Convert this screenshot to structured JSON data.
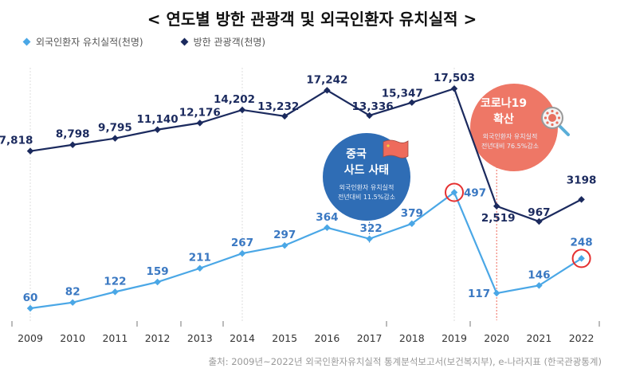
{
  "chart_data": {
    "type": "line",
    "title": "< 연도별 방한 관광객 및 외국인환자 유치실적 >",
    "x": [
      "2009",
      "2010",
      "2011",
      "2012",
      "2013",
      "2014",
      "2015",
      "2016",
      "2017",
      "2018",
      "2019",
      "2020",
      "2021",
      "2022"
    ],
    "series": [
      {
        "name": "외국인환자 유치실적(천명)",
        "color": "#4aa7e6",
        "values": [
          60,
          82,
          122,
          159,
          211,
          267,
          297,
          364,
          322,
          379,
          497,
          117,
          146,
          248
        ],
        "labels": [
          "60",
          "82",
          "122",
          "159",
          "211",
          "267",
          "297",
          "364",
          "322",
          "379",
          "497",
          "117",
          "146",
          "248"
        ],
        "label_color": "#3a78c2"
      },
      {
        "name": "방한 관광객(천명)",
        "color": "#1b2a5e",
        "values": [
          7818,
          8798,
          9795,
          11140,
          12176,
          14202,
          13232,
          17242,
          13336,
          15347,
          17503,
          2519,
          967,
          3198
        ],
        "labels": [
          "7,818",
          "8,798",
          "9,795",
          "11,140",
          "12,176",
          "14,202",
          "13,232",
          "17,242",
          "13,336",
          "15,347",
          "17,503",
          "2,519",
          "967",
          "3198"
        ],
        "label_color": "#1b2a5e"
      }
    ],
    "legend": "top-left",
    "grid": "vertical-dotted",
    "annotations": [
      {
        "year": "2017",
        "title_line1": "중국",
        "title_line2": "사드 사태",
        "sub_line1": "외국인환자 유치실적",
        "sub_line2": "전년대비 11.5%감소",
        "color": "#2f6db5"
      },
      {
        "year": "2020",
        "title_line1": "코로나19",
        "title_line2": "확산",
        "sub_line1": "외국인환자 유치실적",
        "sub_line2": "전년대비 76.5%감소",
        "color": "#ee7766"
      }
    ],
    "highlight_years": [
      "2019",
      "2022"
    ],
    "highlight_color": "#e53030"
  },
  "source": "출처: 2009년~2022년 외국인환자유치실적 통계분석보고서(보건복지부), e-나라지표 (한국관광통계)"
}
